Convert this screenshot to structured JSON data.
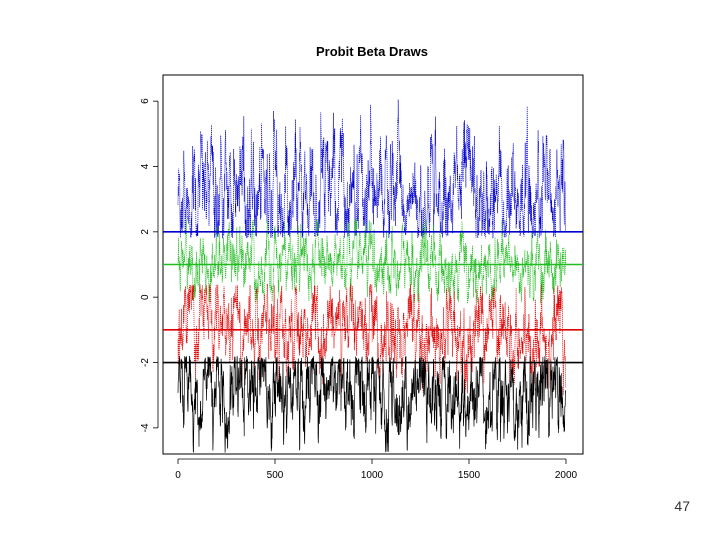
{
  "slide": {
    "page_number": "47"
  },
  "chart_data": {
    "type": "line",
    "title": "Probit Beta Draws",
    "xlabel": "",
    "ylabel": "",
    "xlim": [
      0,
      2000
    ],
    "ylim": [
      -4.8,
      6.8
    ],
    "x_ticks": [
      0,
      500,
      1000,
      1500,
      2000
    ],
    "x_tick_labels": [
      "0",
      "500",
      "1000",
      "1500",
      "2000"
    ],
    "y_ticks": [
      -4,
      -2,
      0,
      2,
      4,
      6
    ],
    "y_tick_labels": [
      "-4",
      "-2",
      "0",
      "2",
      "4",
      "6"
    ],
    "grid": false,
    "legend": "none",
    "series": [
      {
        "color": "#0000cc",
        "mean_draw": 3.0,
        "spread": 1.0,
        "min": 1.8,
        "max": 6.2,
        "reference_line": 2.0,
        "line_style": "dotted"
      },
      {
        "color": "#22bb22",
        "mean_draw": 1.0,
        "spread": 0.55,
        "min": -0.2,
        "max": 2.4,
        "reference_line": 1.0,
        "line_style": "dotted"
      },
      {
        "color": "#dd0000",
        "mean_draw": -0.9,
        "spread": 0.75,
        "min": -3.0,
        "max": 0.4,
        "reference_line": -1.0,
        "line_style": "dotted"
      },
      {
        "color": "#000000",
        "mean_draw": -2.8,
        "spread": 0.8,
        "min": -4.8,
        "max": -1.8,
        "reference_line": -2.0,
        "line_style": "solid"
      }
    ],
    "n_draws": 2000
  }
}
